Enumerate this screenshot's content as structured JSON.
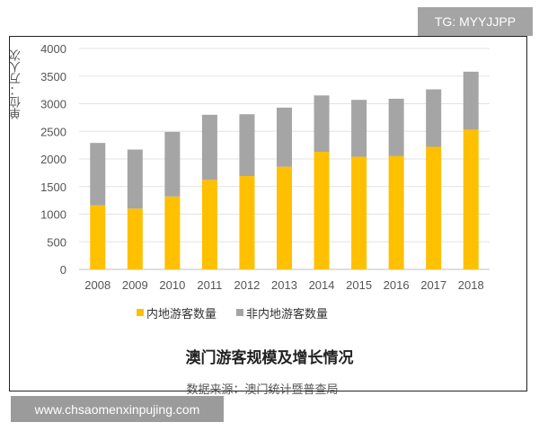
{
  "watermark_top": "TG: MYYJJPP",
  "watermark_bottom": "www.chsaomenxinpujing.com",
  "caption": {
    "title": "澳门游客规模及增长情况",
    "source": "数据来源：澳门统计暨普查局"
  },
  "chart_data": {
    "type": "bar",
    "stacked": true,
    "title": "",
    "ylabel": "单位：万人次",
    "xlabel": "",
    "ylim": [
      0,
      4000
    ],
    "yticks": [
      0,
      500,
      1000,
      1500,
      2000,
      2500,
      3000,
      3500,
      4000
    ],
    "grid": true,
    "legend_position": "bottom",
    "categories": [
      "2008",
      "2009",
      "2010",
      "2011",
      "2012",
      "2013",
      "2014",
      "2015",
      "2016",
      "2017",
      "2018"
    ],
    "series": [
      {
        "name": "内地游客数量",
        "color": "#ffc000",
        "values": [
          1160,
          1100,
          1320,
          1620,
          1690,
          1860,
          2130,
          2040,
          2050,
          2220,
          2530
        ]
      },
      {
        "name": "非内地游客数量",
        "color": "#a5a5a5",
        "values": [
          1130,
          1070,
          1170,
          1180,
          1120,
          1070,
          1020,
          1030,
          1040,
          1040,
          1050
        ]
      }
    ]
  }
}
